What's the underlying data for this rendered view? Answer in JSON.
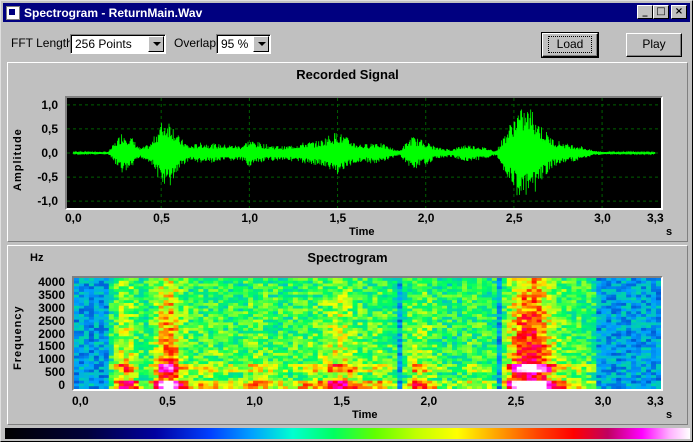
{
  "window": {
    "title": "Spectrogram - ReturnMain.Wav",
    "controls": {
      "minimize": "_",
      "maximize": "□",
      "close": "×"
    }
  },
  "toolbar": {
    "fft_label": "FFT Length",
    "fft_value": "256  Points",
    "overlap_label": "Overlap",
    "overlap_value": "95 %",
    "load_label": "Load",
    "play_label": "Play"
  },
  "signal_panel": {
    "title": "Recorded Signal",
    "ylabel": "Amplitude",
    "xlabel": "Time",
    "x_unit": "s",
    "y_ticks": [
      "1,0",
      "0,5",
      "0,0",
      "-0,5",
      "-1,0"
    ],
    "x_ticks": [
      "0,0",
      "0,5",
      "1,0",
      "1,5",
      "2,0",
      "2,5",
      "3,0",
      "3,3"
    ]
  },
  "spectrogram_panel": {
    "title": "Spectrogram",
    "y_unit": "Hz",
    "ylabel": "Frequency",
    "xlabel": "Time",
    "x_unit": "s",
    "y_ticks": [
      "4000",
      "3500",
      "3000",
      "2500",
      "2000",
      "1500",
      "1000",
      "500",
      "0"
    ],
    "x_ticks": [
      "0,0",
      "0,5",
      "1,0",
      "1,5",
      "2,0",
      "2,5",
      "3,0",
      "3,3"
    ]
  },
  "chart_data": [
    {
      "type": "line",
      "title": "Recorded Signal",
      "xlabel": "Time",
      "ylabel": "Amplitude",
      "xlim": [
        0,
        3.3
      ],
      "ylim": [
        -1.1,
        1.1
      ],
      "grid": true,
      "color": "#00ff00",
      "envelope": {
        "x": [
          0.0,
          0.2,
          0.28,
          0.33,
          0.38,
          0.44,
          0.5,
          0.55,
          0.6,
          0.66,
          0.72,
          0.8,
          0.86,
          0.95,
          1.0,
          1.1,
          1.2,
          1.3,
          1.4,
          1.45,
          1.5,
          1.6,
          1.65,
          1.72,
          1.8,
          1.85,
          1.92,
          2.0,
          2.06,
          2.15,
          2.22,
          2.3,
          2.4,
          2.45,
          2.52,
          2.6,
          2.66,
          2.72,
          2.8,
          2.88,
          2.95,
          3.05,
          3.3
        ],
        "amplitude": [
          0.02,
          0.03,
          0.45,
          0.35,
          0.1,
          0.2,
          0.65,
          0.72,
          0.35,
          0.15,
          0.22,
          0.2,
          0.18,
          0.16,
          0.28,
          0.18,
          0.14,
          0.22,
          0.26,
          0.38,
          0.45,
          0.22,
          0.18,
          0.25,
          0.12,
          0.05,
          0.35,
          0.25,
          0.12,
          0.08,
          0.18,
          0.15,
          0.05,
          0.42,
          0.9,
          0.95,
          0.55,
          0.3,
          0.2,
          0.15,
          0.05,
          0.02,
          0.02
        ]
      }
    },
    {
      "type": "heatmap",
      "title": "Spectrogram",
      "xlabel": "Time",
      "ylabel": "Frequency",
      "xlim": [
        0,
        3.3
      ],
      "ylim": [
        0,
        4000
      ],
      "colormap": [
        "#000000",
        "#0000a0",
        "#00a0ff",
        "#00ff60",
        "#ffff00",
        "#ff0000",
        "#ff00ff",
        "#ffffff"
      ]
    }
  ]
}
